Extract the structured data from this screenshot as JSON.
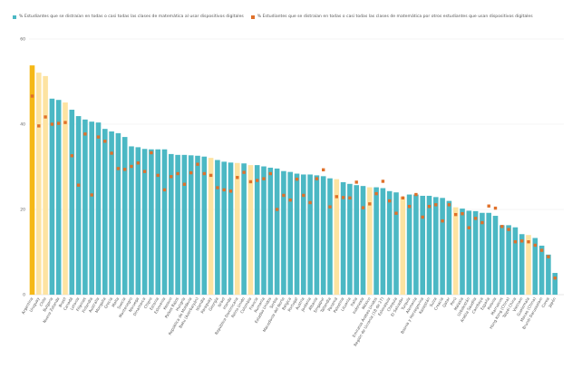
{
  "chart_data": {
    "type": "bar",
    "title": "",
    "xlabel": "",
    "ylabel": "",
    "ylim": [
      0,
      60
    ],
    "yticks": [
      0,
      20,
      40,
      60
    ],
    "grid": true,
    "legend_position": "top-left",
    "colors": {
      "bar": "#4BB8C4",
      "bar_highlight": "#F5B817",
      "bar_latam": "#FDE3A1",
      "marker": "#E0702A"
    },
    "categories": [
      "Argentina",
      "Uruguay",
      "Chile",
      "Bulgaria",
      "Nueva Zelanda",
      "Brasil",
      "Canadá",
      "Letonia",
      "Filipinas",
      "Finlandia",
      "Australia",
      "Mongolia",
      "Grecia",
      "Malta",
      "Suecia",
      "Montenegro",
      "Noruega",
      "Dinamarca",
      "Chipre",
      "Estonia",
      "Eslovenia",
      "Kosovo",
      "Países Bajos",
      "Hungría",
      "República de Moldavia",
      "Baku (Azerbaiyán)",
      "Islandia",
      "Paraguay",
      "Georgia",
      "Israel",
      "Irlanda",
      "República Dominicana",
      "Reino Unido",
      "Colombia",
      "Francia",
      "Rumania",
      "Estados Unidos",
      "Serbia",
      "Macedonia del Norte",
      "Bélgica",
      "Portugal",
      "Austria",
      "Jordania",
      "Albania",
      "Singapur",
      "Tailandia",
      "Panamá",
      "Palestina",
      "Lituania",
      "Italia",
      "Indonesia",
      "México",
      "Emiratos Árabes Unidos",
      "Región de Ucrania (18 de 27)",
      "Eslovaquia",
      "Chequia",
      "El Salvador",
      "Turquía",
      "Alemania",
      "Bosnia y Herzegovina",
      "Kazajstán",
      "Suiza",
      "Croacia",
      "Qatar",
      "Perú",
      "Malasia",
      "Uzbekistán",
      "Arabia Saudita",
      "Camboya",
      "España",
      "Polonia",
      "Marruecos",
      "Hong Kong (China)",
      "Taipéi China",
      "Vietnam",
      "Guatemala",
      "Macao (China)",
      "Brunéi Darussalam",
      "Corea",
      "Japón"
    ],
    "bar_group": [
      "highlight",
      "latam",
      "latam",
      "other",
      "other",
      "latam",
      "other",
      "other",
      "other",
      "other",
      "other",
      "other",
      "other",
      "other",
      "other",
      "other",
      "other",
      "other",
      "other",
      "other",
      "other",
      "other",
      "other",
      "other",
      "other",
      "other",
      "other",
      "latam",
      "other",
      "other",
      "other",
      "latam",
      "other",
      "latam",
      "other",
      "other",
      "other",
      "other",
      "other",
      "other",
      "other",
      "other",
      "other",
      "other",
      "other",
      "other",
      "latam",
      "other",
      "other",
      "other",
      "other",
      "latam",
      "other",
      "other",
      "other",
      "other",
      "latam",
      "other",
      "other",
      "other",
      "other",
      "other",
      "other",
      "other",
      "latam",
      "other",
      "other",
      "other",
      "other",
      "other",
      "other",
      "other",
      "other",
      "other",
      "other",
      "latam",
      "other",
      "other",
      "other",
      "other"
    ],
    "series": [
      {
        "name": "% Estudiantes que se distraían en todas o casi todas las clases de matemática al usar dispositivos digitales",
        "type": "bar",
        "values": [
          53.8,
          52.1,
          51.3,
          46.0,
          45.7,
          45.1,
          43.4,
          41.9,
          41.1,
          40.6,
          40.4,
          38.9,
          38.3,
          37.9,
          37.0,
          34.8,
          34.6,
          34.2,
          34.1,
          34.1,
          34.1,
          33.0,
          32.8,
          32.8,
          32.7,
          32.6,
          32.4,
          32.1,
          31.6,
          31.2,
          31.0,
          30.9,
          30.8,
          30.4,
          30.4,
          30.1,
          29.8,
          29.6,
          29.0,
          28.8,
          28.4,
          28.2,
          28.2,
          28.0,
          27.8,
          27.3,
          27.1,
          26.4,
          26.0,
          25.7,
          25.5,
          25.2,
          25.2,
          25.0,
          24.3,
          24.0,
          23.0,
          23.5,
          23.5,
          23.2,
          23.2,
          22.9,
          22.7,
          22.0,
          20.5,
          20.2,
          19.7,
          19.6,
          19.2,
          19.2,
          18.5,
          16.3,
          16.3,
          15.8,
          14.2,
          14.0,
          13.3,
          11.5,
          9.4,
          5.1
        ]
      },
      {
        "name": "% Estudiantes que se distraían en todas o casi todas las clases de matemática por otros estudiantes que usan dispositivos digitales",
        "type": "scatter",
        "values": [
          46.6,
          39.6,
          41.7,
          40.0,
          40.2,
          40.4,
          32.6,
          25.7,
          37.7,
          23.4,
          37.0,
          36.0,
          33.2,
          29.6,
          29.4,
          30.1,
          30.9,
          28.9,
          33.3,
          28.0,
          24.6,
          27.7,
          28.4,
          25.9,
          28.6,
          30.6,
          28.4,
          28.0,
          25.1,
          24.6,
          24.3,
          27.5,
          28.7,
          26.5,
          26.8,
          27.2,
          28.4,
          20.0,
          23.3,
          22.2,
          27.1,
          23.3,
          21.6,
          27.2,
          29.3,
          20.6,
          23.0,
          22.8,
          22.7,
          26.4,
          20.4,
          21.3,
          23.7,
          26.6,
          22.0,
          19.1,
          22.7,
          20.7,
          23.5,
          18.2,
          20.7,
          21.1,
          17.3,
          21.1,
          18.8,
          19.0,
          15.7,
          17.9,
          16.9,
          20.8,
          20.3,
          16.0,
          15.3,
          12.4,
          12.6,
          12.4,
          11.6,
          10.4,
          8.9,
          3.9
        ]
      }
    ]
  }
}
